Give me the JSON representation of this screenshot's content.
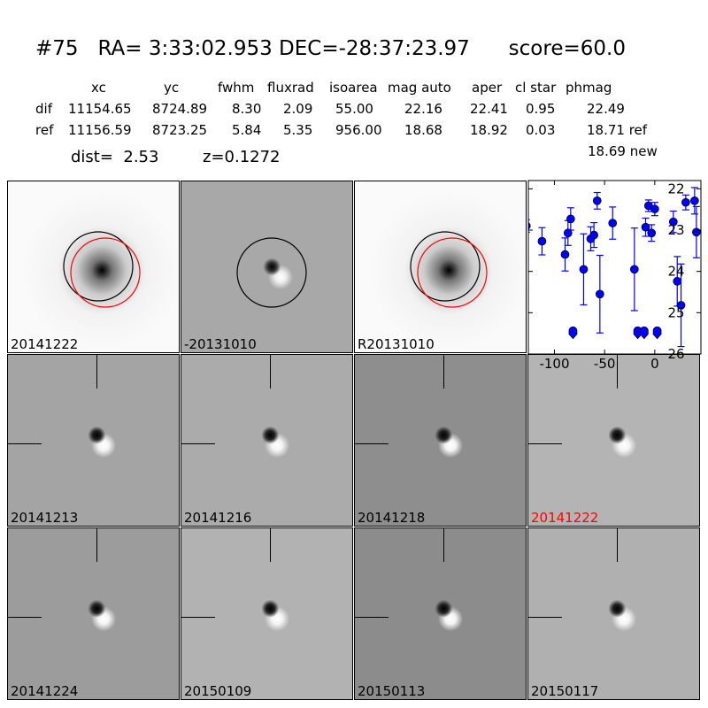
{
  "title": {
    "id": "#75",
    "ra": "RA= 3:33:02.953",
    "dec": "DEC=-28:37:23.97",
    "score": "score=60.0"
  },
  "table": {
    "headers": [
      "xc",
      "yc",
      "fwhm",
      "fluxrad",
      "isoarea",
      "mag auto",
      "aper",
      "cl star",
      "phmag"
    ],
    "rows": [
      {
        "label": "dif",
        "values": [
          "11154.65",
          "8724.89",
          "8.30",
          "2.09",
          "55.00",
          "22.16",
          "22.41",
          "0.95",
          "22.49"
        ]
      },
      {
        "label": "ref",
        "values": [
          "11156.59",
          "8723.25",
          "5.84",
          "5.35",
          "956.00",
          "18.68",
          "18.92",
          "0.03",
          "18.71 ref"
        ]
      }
    ],
    "extra": "18.69 new",
    "dist": "dist=  2.53",
    "z": "z=0.1272"
  },
  "panels": [
    {
      "label": "20141222",
      "style": "new",
      "circles": true
    },
    {
      "label": "-20131010",
      "style": "diff",
      "circles": false
    },
    {
      "label": "R20131010",
      "style": "new",
      "circles": true
    },
    {
      "label": "20141213",
      "style": "stamp",
      "bg": "#a4a4a4"
    },
    {
      "label": "20141216",
      "style": "stamp",
      "bg": "#ababab"
    },
    {
      "label": "20141218",
      "style": "stamp",
      "bg": "#8e8e8e"
    },
    {
      "label": "20141222",
      "style": "stamp",
      "bg": "#b4b4b4",
      "highlight": "#ff0000"
    },
    {
      "label": "20141224",
      "style": "stamp",
      "bg": "#9c9c9c"
    },
    {
      "label": "20150109",
      "style": "stamp",
      "bg": "#b2b2b2"
    },
    {
      "label": "20150113",
      "style": "stamp",
      "bg": "#8c8c8c"
    },
    {
      "label": "20150117",
      "style": "stamp",
      "bg": "#b0b0b0"
    }
  ],
  "chart_data": {
    "type": "scatter",
    "xlim": [
      -126,
      46
    ],
    "ylim": [
      26,
      21.8
    ],
    "xticks": [
      "-100",
      "-50",
      "0"
    ],
    "xtick_values": [
      -100,
      -50,
      0
    ],
    "yticks": [
      "22",
      "23",
      "24",
      "25",
      "26"
    ],
    "ytick_values": [
      22,
      23,
      24,
      25,
      26
    ],
    "color": "#0000ff",
    "points": [
      {
        "x": -128,
        "y": 22.9,
        "err": 0.15
      },
      {
        "x": -112.4,
        "y": 23.27,
        "err": 0.33
      },
      {
        "x": -89.4,
        "y": 23.59,
        "err": 0.4
      },
      {
        "x": -86.5,
        "y": 23.07,
        "err": 0.3
      },
      {
        "x": -83.8,
        "y": 22.73,
        "err": 0.27
      },
      {
        "x": -70.9,
        "y": 23.95,
        "err": 0.86
      },
      {
        "x": -63.8,
        "y": 23.21,
        "err": 0.29
      },
      {
        "x": -60.6,
        "y": 23.12,
        "err": 0.3
      },
      {
        "x": -57.4,
        "y": 22.29,
        "err": 0.2
      },
      {
        "x": -54.7,
        "y": 24.55,
        "err": 0.94
      },
      {
        "x": -42,
        "y": 22.83,
        "err": 0.39
      },
      {
        "x": -20.3,
        "y": 23.95,
        "err": 1.0
      },
      {
        "x": -9.1,
        "y": 22.93,
        "err": 0.22
      },
      {
        "x": -6.2,
        "y": 22.41,
        "err": 0.14
      },
      {
        "x": -3.2,
        "y": 23.07,
        "err": 0.2
      },
      {
        "x": 0,
        "y": 22.49,
        "err": 0.16
      },
      {
        "x": 18.5,
        "y": 22.8,
        "err": 0.26
      },
      {
        "x": 22.4,
        "y": 24.24,
        "err": 0.6
      },
      {
        "x": 26.2,
        "y": 24.82,
        "err": 1.0
      },
      {
        "x": 30.9,
        "y": 22.33,
        "err": 0.18
      },
      {
        "x": 39.7,
        "y": 22.29,
        "err": 0.32
      },
      {
        "x": 41.5,
        "y": 23.05,
        "err": 0.62
      }
    ],
    "upper_limits": [
      {
        "x": -81.5,
        "y": 25.5
      },
      {
        "x": -17,
        "y": 25.5
      },
      {
        "x": -10.6,
        "y": 25.5
      },
      {
        "x": 2.4,
        "y": 25.5
      }
    ]
  }
}
